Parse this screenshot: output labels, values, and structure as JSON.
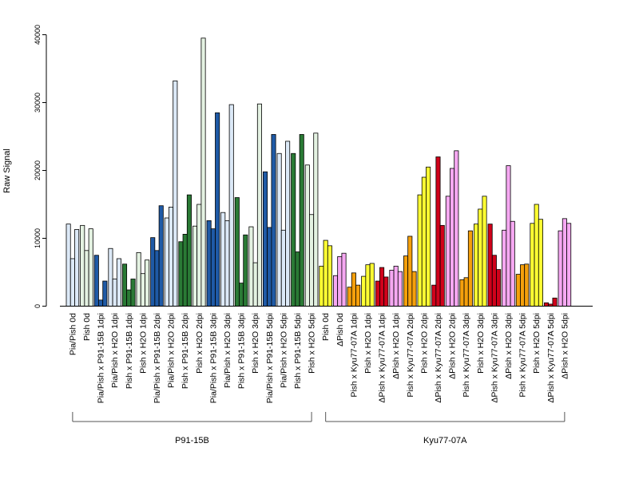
{
  "chart_data": {
    "type": "bar",
    "ylabel": "Raw Signal",
    "xlabel": "",
    "ylim": [
      0,
      40000
    ],
    "yticks": [
      0,
      10000,
      20000,
      30000,
      40000
    ],
    "colors": {
      "light_blue": "#dce9f7",
      "blue": "#1f5aa6",
      "light_green": "#e4f2e2",
      "green": "#2a7a35",
      "yellow": "#ffff33",
      "pink": "#f6a8f2",
      "red": "#d0021b",
      "orange": "#f5a00c"
    },
    "categories": [
      {
        "label": "Pia/Pish 0d",
        "color": "light_blue",
        "values": [
          12100,
          7000,
          11300
        ]
      },
      {
        "label": "Pish 0d",
        "color": "light_green",
        "values": [
          11900,
          8200,
          11400
        ]
      },
      {
        "label": "Pia/Pish x P91-15B 1dpi",
        "color": "blue",
        "values": [
          7500,
          900,
          3700
        ]
      },
      {
        "label": "Pia/Pish x H2O 1dpi",
        "color": "light_blue",
        "values": [
          8500,
          4000,
          7000
        ]
      },
      {
        "label": "Pish x P91-15B 1dpi",
        "color": "green",
        "values": [
          6200,
          2400,
          4000
        ]
      },
      {
        "label": "Pish x H2O 1dpi",
        "color": "light_green",
        "values": [
          7900,
          4800,
          6800
        ]
      },
      {
        "label": "Pia/Pish x P91-15B 2dpi",
        "color": "blue",
        "values": [
          10100,
          8200,
          14800
        ]
      },
      {
        "label": "Pia/Pish x H2O 2dpi",
        "color": "light_blue",
        "values": [
          13000,
          14600,
          33200
        ]
      },
      {
        "label": "Pish x P91-15B 2dpi",
        "color": "green",
        "values": [
          9500,
          10600,
          16400
        ]
      },
      {
        "label": "Pish x H2O 2dpi",
        "color": "light_green",
        "values": [
          11800,
          15000,
          39500
        ]
      },
      {
        "label": "Pia/Pish x P91-15B 3dpi",
        "color": "blue",
        "values": [
          12600,
          11400,
          28500
        ]
      },
      {
        "label": "Pia/Pish x H2O 3dpi",
        "color": "light_blue",
        "values": [
          13800,
          12600,
          29700
        ]
      },
      {
        "label": "Pish x P91-15B 3dpi",
        "color": "green",
        "values": [
          16000,
          3400,
          10500
        ]
      },
      {
        "label": "Pish x H2O 3dpi",
        "color": "light_green",
        "values": [
          11700,
          6400,
          29800
        ]
      },
      {
        "label": "Pia/Pish x P91-15B 5dpi",
        "color": "blue",
        "values": [
          19800,
          11600,
          25300
        ]
      },
      {
        "label": "Pia/Pish x H2O 5dpi",
        "color": "light_blue",
        "values": [
          22500,
          11200,
          24300
        ]
      },
      {
        "label": "Pish x P91-15B 5dpi",
        "color": "green",
        "values": [
          22500,
          8000,
          25300
        ]
      },
      {
        "label": "Pish x H2O 5dpi",
        "color": "light_green",
        "values": [
          20800,
          13500,
          25500
        ]
      },
      {
        "label": "Pish 0d",
        "color": "yellow",
        "values": [
          5900,
          9700,
          8900
        ]
      },
      {
        "label": "ΔPish 0d",
        "color": "pink",
        "values": [
          4500,
          7300,
          7800
        ]
      },
      {
        "label": "Pish x Kyu77-07A 1dpi",
        "color": "orange",
        "values": [
          2800,
          4900,
          3100
        ]
      },
      {
        "label": "Pish x H2O 1dpi",
        "color": "yellow",
        "values": [
          4400,
          6100,
          6300
        ]
      },
      {
        "label": "ΔPish x Kyu77-07A 1dpi",
        "color": "red",
        "values": [
          3700,
          5700,
          4300
        ]
      },
      {
        "label": "ΔPish x H2O 1dpi",
        "color": "pink",
        "values": [
          5300,
          5900,
          5100
        ]
      },
      {
        "label": "Pish x Kyu77-07A 2dpi",
        "color": "orange",
        "values": [
          7400,
          10300,
          5100
        ]
      },
      {
        "label": "Pish x H2O 2dpi",
        "color": "yellow",
        "values": [
          16400,
          19000,
          20500
        ]
      },
      {
        "label": "ΔPish x Kyu77-07A 2dpi",
        "color": "red",
        "values": [
          3100,
          22000,
          11900
        ]
      },
      {
        "label": "ΔPish x H2O 2dpi",
        "color": "pink",
        "values": [
          16200,
          20300,
          22900
        ]
      },
      {
        "label": "Pish x Kyu77-07A 3dpi",
        "color": "orange",
        "values": [
          3900,
          4200,
          11100
        ]
      },
      {
        "label": "Pish x H2O 3dpi",
        "color": "yellow",
        "values": [
          12100,
          14300,
          16200
        ]
      },
      {
        "label": "ΔPish x Kyu77-07A 3dpi",
        "color": "red",
        "values": [
          12100,
          7500,
          5400
        ]
      },
      {
        "label": "ΔPish x H2O 3dpi",
        "color": "pink",
        "values": [
          11200,
          20700,
          12500
        ]
      },
      {
        "label": "Pish x Kyu77-07A 5dpi",
        "color": "orange",
        "values": [
          4700,
          6100,
          6200
        ]
      },
      {
        "label": "Pish x H2O 5dpi",
        "color": "yellow",
        "values": [
          12200,
          15000,
          12800
        ]
      },
      {
        "label": "ΔPish x Kyu77-07A 5dpi",
        "color": "red",
        "values": [
          500,
          300,
          1200
        ]
      },
      {
        "label": "ΔPish x H2O 5dpi",
        "color": "pink",
        "values": [
          11100,
          12900,
          12200
        ]
      }
    ],
    "groups": [
      {
        "label": "P91-15B",
        "start": 0,
        "end": 17
      },
      {
        "label": "Kyu77-07A",
        "start": 18,
        "end": 35
      }
    ]
  }
}
